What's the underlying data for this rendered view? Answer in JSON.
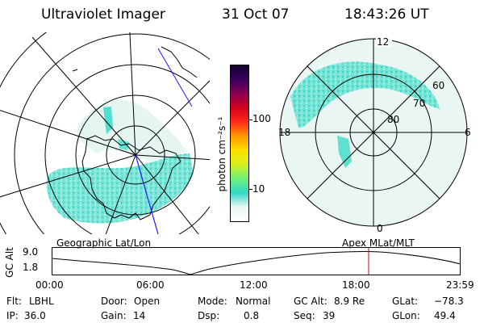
{
  "header": {
    "instrument": "Ultraviolet Imager",
    "date": "31 Oct 07",
    "time": "18:43:26 UT"
  },
  "colorbar": {
    "unit_label": "photon cm⁻²s⁻¹",
    "ticks": [
      "100",
      "10"
    ],
    "scale": "log",
    "colors": [
      "#ffffff",
      "#e8f7f3",
      "#33d9c8",
      "#6ef07a",
      "#d6f01e",
      "#ffe000",
      "#ff9900",
      "#ff2a1a",
      "#d4001a",
      "#8a0055",
      "#3a0060",
      "#140030"
    ]
  },
  "geo_map": {
    "caption": "Geographic Lat/Lon"
  },
  "mlt_map": {
    "caption": "Apex MLat/MLT",
    "mlt_labels": {
      "top": "12",
      "bottom": "0",
      "left": "18",
      "right": "6"
    },
    "lat_labels": [
      "60",
      "70",
      "80"
    ]
  },
  "altitude_plot": {
    "ylabel": "GC Alt",
    "yticks": [
      "9.0",
      "1.8"
    ],
    "xticks": [
      "00:00",
      "06:00",
      "12:00",
      "18:00",
      "23:59"
    ],
    "marker_time": "18:43"
  },
  "info": {
    "filter": {
      "label": "Flt:",
      "value": "LBHL"
    },
    "ip": {
      "label": "IP:",
      "value": "36.0"
    },
    "door": {
      "label": "Door:",
      "value": "Open"
    },
    "gain": {
      "label": "Gain:",
      "value": "14"
    },
    "mode": {
      "label": "Mode:",
      "value": "Normal"
    },
    "dsp": {
      "label": "Dsp:",
      "value": "0.8"
    },
    "gcalt": {
      "label": "GC Alt:",
      "value": "8.9 Re"
    },
    "seq": {
      "label": "Seq:",
      "value": "39"
    },
    "glat": {
      "label": "GLat:",
      "value": "−78.3"
    },
    "glon": {
      "label": "GLon:",
      "value": "49.4"
    }
  }
}
